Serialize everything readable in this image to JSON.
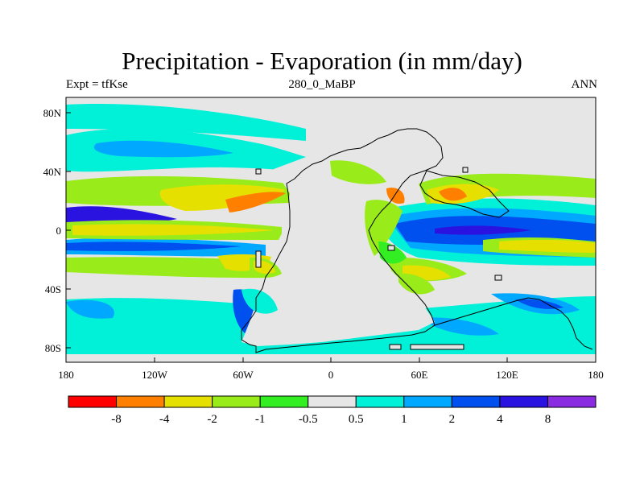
{
  "header": {
    "title": "Precipitation - Evaporation (in mm/day)",
    "left": "Expt = tfKse",
    "center": "280_0_MaBP",
    "right": "ANN"
  },
  "axes": {
    "x_ticks": [
      "180",
      "120W",
      "60W",
      "0",
      "60E",
      "120E",
      "180"
    ],
    "y_ticks": [
      "80N",
      "40N",
      "0",
      "40S",
      "80S"
    ]
  },
  "colorbar": {
    "labels": [
      "-8",
      "-4",
      "-2",
      "-1",
      "-0.5",
      "0.5",
      "1",
      "2",
      "4",
      "8"
    ],
    "colors": [
      "#ff0000",
      "#ff8000",
      "#e6e000",
      "#9aeb1a",
      "#33ee22",
      "#e6e6e6",
      "#00f0d8",
      "#00a8ff",
      "#0050f0",
      "#2a12e0",
      "#8a2be2"
    ]
  },
  "palette": {
    "neutral": "#e6e6e6",
    "cyan": "#00f0d8",
    "lightblue": "#00a8ff",
    "blue": "#0050f0",
    "darkblue": "#2a12e0",
    "yellow": "#e6e000",
    "lime": "#9aeb1a",
    "green": "#33ee22",
    "orange": "#ff8000"
  }
}
